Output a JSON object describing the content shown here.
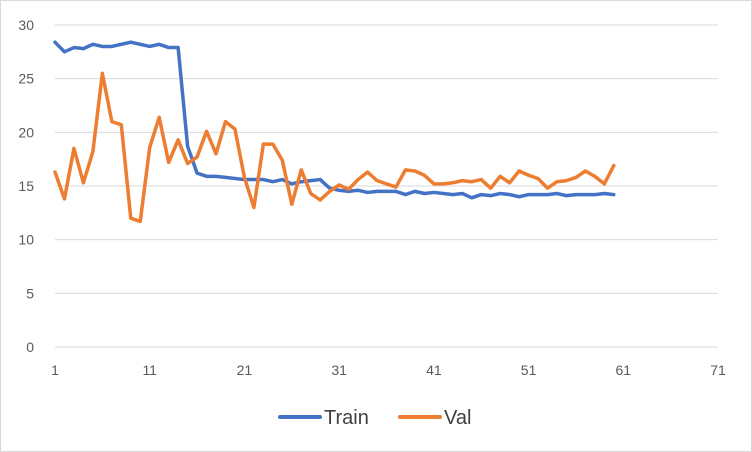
{
  "chart_data": {
    "type": "line",
    "title": "",
    "xlabel": "",
    "ylabel": "",
    "xlim": [
      1,
      71
    ],
    "ylim": [
      0,
      30
    ],
    "x_ticks": [
      1,
      11,
      21,
      31,
      41,
      51,
      61,
      71
    ],
    "y_ticks": [
      0,
      5,
      10,
      15,
      20,
      25,
      30
    ],
    "grid": "horizontal",
    "legend_position": "bottom",
    "series": [
      {
        "name": "Train",
        "color": "#4472C4",
        "x": [
          1,
          2,
          3,
          4,
          5,
          6,
          7,
          8,
          9,
          10,
          11,
          12,
          13,
          14,
          15,
          16,
          17,
          18,
          19,
          20,
          21,
          22,
          23,
          24,
          25,
          26,
          27,
          28,
          29,
          30,
          31,
          32,
          33,
          34,
          35,
          36,
          37,
          38,
          39,
          40,
          41,
          42,
          43,
          44,
          45,
          46,
          47,
          48,
          49,
          50,
          51,
          52,
          53,
          54,
          55,
          56,
          57,
          58,
          59,
          60
        ],
        "values": [
          28.4,
          27.5,
          27.9,
          27.8,
          28.2,
          28.0,
          28.0,
          28.2,
          28.4,
          28.2,
          28.0,
          28.2,
          27.9,
          27.9,
          18.7,
          16.2,
          15.9,
          15.9,
          15.8,
          15.7,
          15.6,
          15.6,
          15.6,
          15.4,
          15.6,
          15.2,
          15.4,
          15.5,
          15.6,
          14.8,
          14.6,
          14.5,
          14.6,
          14.4,
          14.5,
          14.5,
          14.5,
          14.2,
          14.5,
          14.3,
          14.4,
          14.3,
          14.2,
          14.3,
          13.9,
          14.2,
          14.1,
          14.3,
          14.2,
          14.0,
          14.2,
          14.2,
          14.2,
          14.3,
          14.1,
          14.2,
          14.2,
          14.2,
          14.3,
          14.2
        ]
      },
      {
        "name": "Val",
        "color": "#ED7D31",
        "x": [
          1,
          2,
          3,
          4,
          5,
          6,
          7,
          8,
          9,
          10,
          11,
          12,
          13,
          14,
          15,
          16,
          17,
          18,
          19,
          20,
          21,
          22,
          23,
          24,
          25,
          26,
          27,
          28,
          29,
          30,
          31,
          32,
          33,
          34,
          35,
          36,
          37,
          38,
          39,
          40,
          41,
          42,
          43,
          44,
          45,
          46,
          47,
          48,
          49,
          50,
          51,
          52,
          53,
          54,
          55,
          56,
          57,
          58,
          59,
          60
        ],
        "values": [
          16.3,
          13.8,
          18.5,
          15.3,
          18.2,
          25.5,
          21.0,
          20.7,
          12.0,
          11.7,
          18.6,
          21.4,
          17.2,
          19.3,
          17.1,
          17.7,
          20.1,
          18.0,
          21.0,
          20.3,
          15.8,
          13.0,
          18.9,
          18.9,
          17.4,
          13.3,
          16.5,
          14.3,
          13.7,
          14.5,
          15.1,
          14.7,
          15.6,
          16.3,
          15.5,
          15.2,
          14.9,
          16.5,
          16.4,
          16.0,
          15.2,
          15.2,
          15.3,
          15.5,
          15.4,
          15.6,
          14.8,
          15.9,
          15.3,
          16.4,
          16.0,
          15.7,
          14.8,
          15.4,
          15.5,
          15.8,
          16.4,
          15.9,
          15.2,
          16.9
        ]
      }
    ]
  }
}
